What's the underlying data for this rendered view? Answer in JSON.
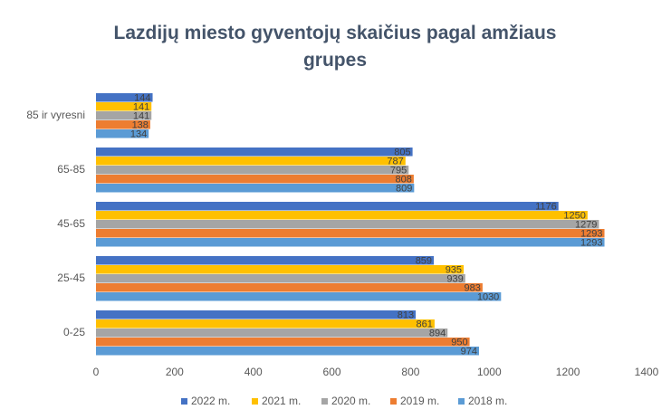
{
  "chart_data": {
    "type": "bar",
    "orientation": "horizontal",
    "title": "Lazdijų miesto gyventojų skaičius pagal amžiaus grupes",
    "categories": [
      "85 ir vyresni",
      "65-85",
      "45-65",
      "25-45",
      "0-25"
    ],
    "series": [
      {
        "name": "2022 m.",
        "color": "#4472c4",
        "values": [
          144,
          805,
          1176,
          859,
          813
        ]
      },
      {
        "name": "2021 m.",
        "color": "#ffc000",
        "values": [
          141,
          787,
          1250,
          935,
          861
        ]
      },
      {
        "name": "2020 m.",
        "color": "#a5a5a5",
        "values": [
          141,
          795,
          1279,
          939,
          894
        ]
      },
      {
        "name": "2019 m.",
        "color": "#ed7d31",
        "values": [
          138,
          808,
          1293,
          983,
          950
        ]
      },
      {
        "name": "2018 m.",
        "color": "#5b9bd5",
        "values": [
          134,
          809,
          1293,
          1030,
          974
        ]
      }
    ],
    "xlim": [
      0,
      1400
    ],
    "xticks": [
      0,
      200,
      400,
      600,
      800,
      1000,
      1200,
      1400
    ],
    "grid": false,
    "legend": "bottom"
  }
}
